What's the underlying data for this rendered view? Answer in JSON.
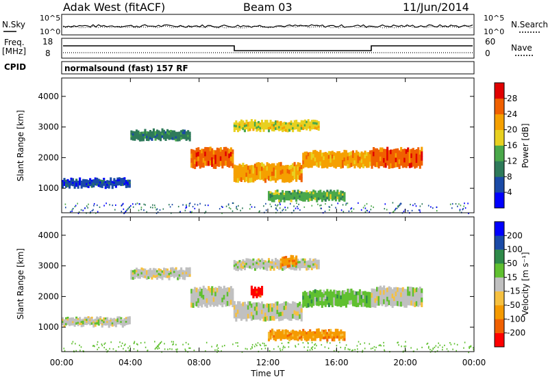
{
  "header": {
    "station": "Adak West (fitACF)",
    "beam": "Beam 03",
    "date": "11/Jun/2014"
  },
  "strip": {
    "nsky_label": "N.Sky",
    "nsky_tick_top": "10^5",
    "nsky_tick_bottom": "10^0",
    "nsearch_label": "N.Search",
    "nsearch_tick_top": "10^5",
    "nsearch_tick_bottom": "10^0",
    "freq_label": "Freq.",
    "freq_unit": "[MHz]",
    "freq_tick_top": "18",
    "freq_tick_bottom": "8",
    "nave_label": "Nave",
    "nave_tick_top": "60",
    "nave_tick_bottom": "0",
    "cpid_label": "CPID",
    "cpid_text": "normalsound (fast) 157 RF"
  },
  "colors": {
    "power": [
      "#0000ff",
      "#1a4aa6",
      "#2e7a5a",
      "#4aa84a",
      "#e8d020",
      "#f5a000",
      "#f06000",
      "#e00000"
    ],
    "velocity": [
      "#ff0000",
      "#f06000",
      "#f59a00",
      "#f5c040",
      "#c0c0c0",
      "#60c030",
      "#2e8a4a",
      "#1a4aa6",
      "#0000ff"
    ]
  },
  "chart_data": [
    {
      "type": "heatmap",
      "name": "power",
      "ylabel": "Slant Range [km]",
      "ylim": [
        200,
        4600
      ],
      "yticks": [
        "1000",
        "2000",
        "3000",
        "4000"
      ],
      "xticks": [
        "00:00",
        "04:00",
        "08:00",
        "12:00",
        "16:00",
        "20:00",
        "00:00"
      ],
      "colorbar_label": "Power [dB]",
      "colorbar_ticks": [
        "4",
        "8",
        "12",
        "16",
        "20",
        "24",
        "28"
      ],
      "bands": [
        {
          "t0": 0.0,
          "t1": 4.0,
          "r0": 1050,
          "r1": 1300,
          "c": 1
        },
        {
          "t0": 4.0,
          "t1": 7.5,
          "r0": 2600,
          "r1": 2900,
          "c": 2
        },
        {
          "t0": 7.5,
          "t1": 10.0,
          "r0": 1700,
          "r1": 2300,
          "c": 6
        },
        {
          "t0": 10.0,
          "t1": 14.0,
          "r0": 1250,
          "r1": 1800,
          "c": 5
        },
        {
          "t0": 14.0,
          "t1": 18.0,
          "r0": 1700,
          "r1": 2200,
          "c": 5
        },
        {
          "t0": 18.0,
          "t1": 21.0,
          "r0": 1700,
          "r1": 2300,
          "c": 6
        },
        {
          "t0": 10.0,
          "t1": 15.0,
          "r0": 2900,
          "r1": 3200,
          "c": 4
        },
        {
          "t0": 12.0,
          "t1": 16.5,
          "r0": 600,
          "r1": 900,
          "c": 3
        }
      ]
    },
    {
      "type": "heatmap",
      "name": "velocity",
      "ylabel": "Slant Range [km]",
      "ylim": [
        200,
        4600
      ],
      "yticks": [
        "1000",
        "2000",
        "3000",
        "4000"
      ],
      "xticks": [
        "00:00",
        "04:00",
        "08:00",
        "12:00",
        "16:00",
        "20:00",
        "00:00"
      ],
      "xlabel": "Time UT",
      "colorbar_label": "Velocity [m s⁻¹]",
      "colorbar_ticks": [
        "-200",
        "-100",
        "-50",
        "-15",
        "15",
        "50",
        "100",
        "200"
      ],
      "bands": [
        {
          "t0": 0.0,
          "t1": 4.0,
          "r0": 1050,
          "r1": 1300,
          "c": 4
        },
        {
          "t0": 4.0,
          "t1": 7.5,
          "r0": 2600,
          "r1": 2900,
          "c": 4
        },
        {
          "t0": 7.5,
          "t1": 10.0,
          "r0": 1700,
          "r1": 2300,
          "c": 4
        },
        {
          "t0": 10.0,
          "t1": 14.0,
          "r0": 1250,
          "r1": 1800,
          "c": 4
        },
        {
          "t0": 14.0,
          "t1": 18.0,
          "r0": 1700,
          "r1": 2200,
          "c": 5
        },
        {
          "t0": 18.0,
          "t1": 21.0,
          "r0": 1700,
          "r1": 2300,
          "c": 4
        },
        {
          "t0": 10.0,
          "t1": 15.0,
          "r0": 2900,
          "r1": 3200,
          "c": 4
        },
        {
          "t0": 12.0,
          "t1": 16.5,
          "r0": 600,
          "r1": 900,
          "c": 2
        },
        {
          "t0": 11.0,
          "t1": 11.7,
          "r0": 2000,
          "r1": 2300,
          "c": 0
        },
        {
          "t0": 12.7,
          "t1": 13.7,
          "r0": 3000,
          "r1": 3300,
          "c": 2
        }
      ]
    }
  ]
}
